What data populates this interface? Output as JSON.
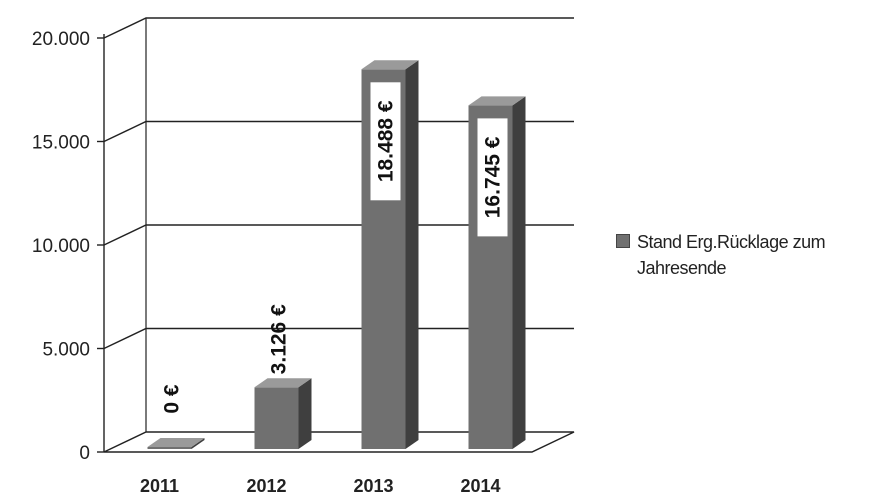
{
  "chart_data": {
    "type": "bar",
    "categories": [
      "2011",
      "2012",
      "2013",
      "2014"
    ],
    "series": [
      {
        "name": "Stand Erg.Rücklage zum Jahresende",
        "values": [
          0,
          3126,
          18488,
          16745
        ],
        "labels": [
          "0 €",
          "3.126 €",
          "18.488 €",
          "16.745 €"
        ]
      }
    ],
    "ylim": [
      0,
      20000
    ],
    "yticks": [
      0,
      5000,
      10000,
      15000,
      20000
    ],
    "ytick_labels": [
      "0",
      "5.000",
      "10.000",
      "15.000",
      "20.000"
    ],
    "grid": true,
    "three_d": true,
    "legend_position": "right",
    "colors": {
      "bar_front": "#707070",
      "bar_side": "#3f3f3f",
      "bar_top": "#9a9a9a",
      "grid": "#222222"
    }
  }
}
